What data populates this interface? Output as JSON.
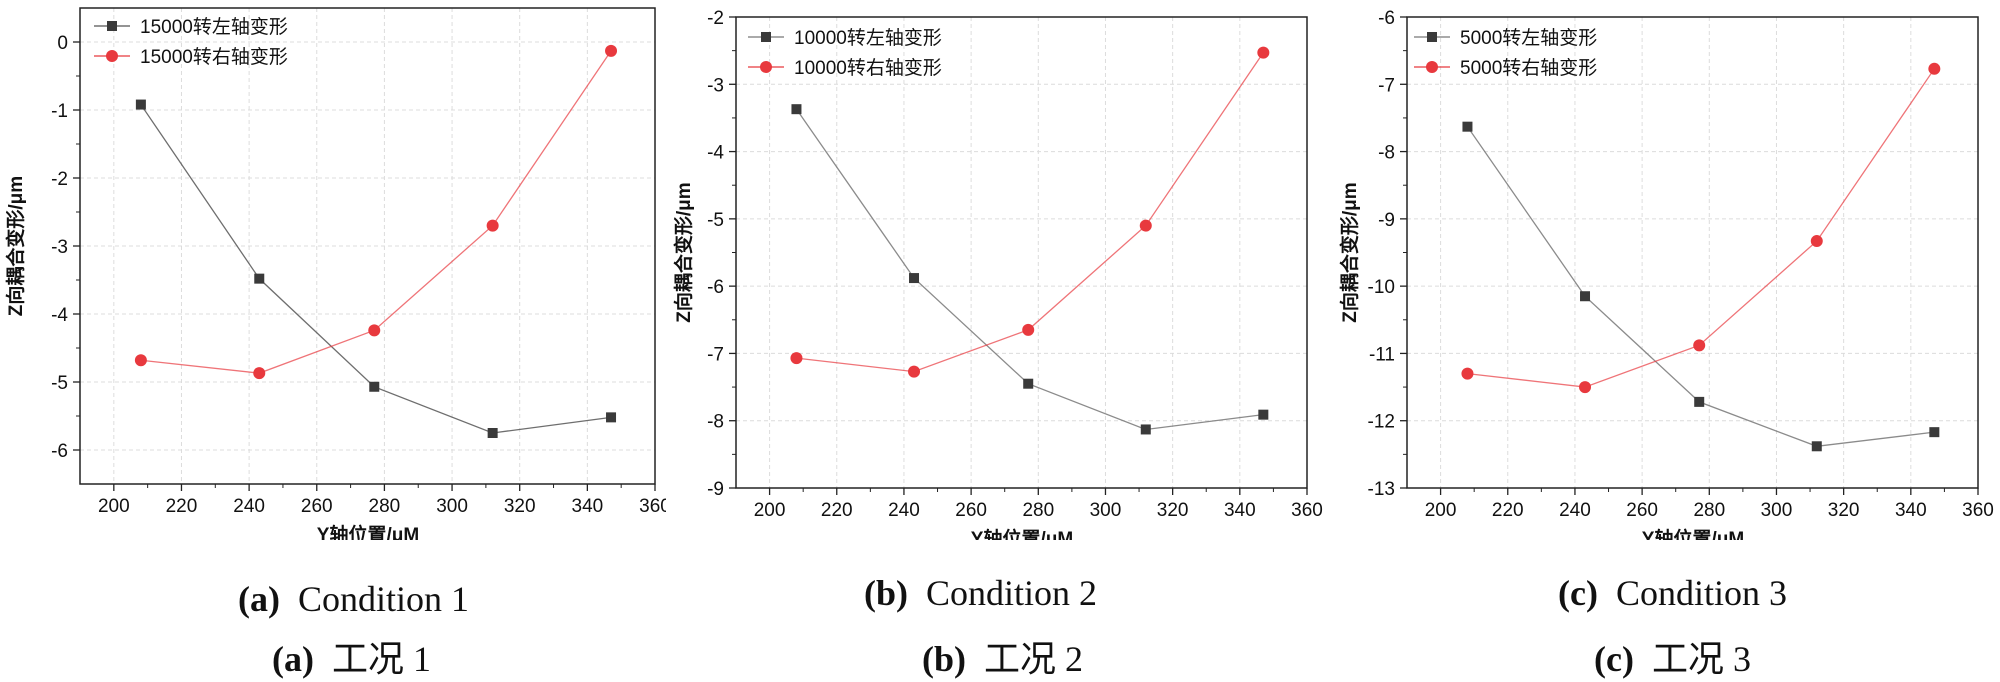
{
  "chart_data": [
    {
      "type": "line",
      "panel_letter": "(a)",
      "caption_en": "Condition 1",
      "caption_zh": "工况 1",
      "xlabel": "Y轴位置/μM",
      "ylabel": "Z向耦合变形/μm",
      "xlim": [
        190,
        360
      ],
      "ylim": [
        -6.5,
        0.5
      ],
      "xticks": [
        200,
        220,
        240,
        260,
        280,
        300,
        320,
        340,
        360
      ],
      "yticks": [
        0,
        -1,
        -2,
        -3,
        -4,
        -5,
        -6
      ],
      "x": [
        208,
        243,
        277,
        312,
        347
      ],
      "series": [
        {
          "name": "15000转左轴变形",
          "color": "#555555",
          "marker": "square",
          "values": [
            -0.92,
            -3.48,
            -5.07,
            -5.75,
            -5.52
          ]
        },
        {
          "name": "15000转右轴变形",
          "color": "#e8393e",
          "marker": "circle",
          "values": [
            -4.68,
            -4.87,
            -4.24,
            -2.7,
            -0.13
          ]
        }
      ]
    },
    {
      "type": "line",
      "panel_letter": "(b)",
      "caption_en": "Condition 2",
      "caption_zh": "工况 2",
      "xlabel": "Y轴位置/μM",
      "ylabel": "Z向耦合变形/μm",
      "xlim": [
        190,
        360
      ],
      "ylim": [
        -9,
        -2
      ],
      "xticks": [
        200,
        220,
        240,
        260,
        280,
        300,
        320,
        340,
        360
      ],
      "yticks": [
        -2,
        -3,
        -4,
        -5,
        -6,
        -7,
        -8,
        -9
      ],
      "x": [
        208,
        243,
        277,
        312,
        347
      ],
      "series": [
        {
          "name": "10000转左轴变形",
          "color": "#777777",
          "marker": "square",
          "values": [
            -3.37,
            -5.88,
            -7.45,
            -8.13,
            -7.91
          ]
        },
        {
          "name": "10000转右轴变形",
          "color": "#e8393e",
          "marker": "circle",
          "values": [
            -7.07,
            -7.27,
            -6.65,
            -5.1,
            -2.53
          ]
        }
      ]
    },
    {
      "type": "line",
      "panel_letter": "(c)",
      "caption_en": "Condition 3",
      "caption_zh": "工况 3",
      "xlabel": "Y轴位置/μM",
      "ylabel": "Z向耦合变形/μm",
      "xlim": [
        190,
        360
      ],
      "ylim": [
        -13,
        -6
      ],
      "xticks": [
        200,
        220,
        240,
        260,
        280,
        300,
        320,
        340,
        360
      ],
      "yticks": [
        -6,
        -7,
        -8,
        -9,
        -10,
        -11,
        -12,
        -13
      ],
      "x": [
        208,
        243,
        277,
        312,
        347
      ],
      "series": [
        {
          "name": "5000转左轴变形",
          "color": "#777777",
          "marker": "square",
          "values": [
            -7.63,
            -10.15,
            -11.72,
            -12.38,
            -12.17
          ]
        },
        {
          "name": "5000转右轴变形",
          "color": "#e8393e",
          "marker": "circle",
          "values": [
            -11.3,
            -11.5,
            -10.88,
            -9.33,
            -6.77
          ]
        }
      ]
    }
  ]
}
